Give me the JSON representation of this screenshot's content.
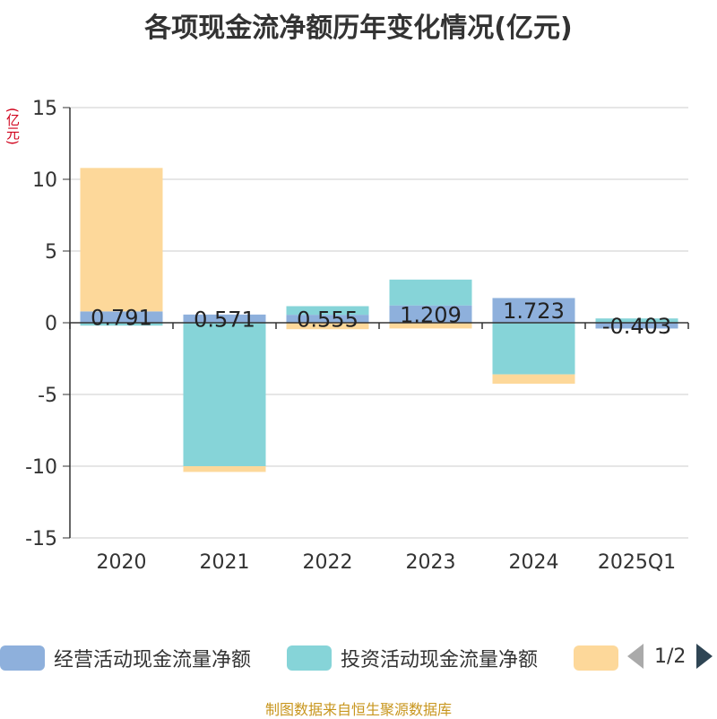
{
  "title": "各项现金流净额历年变化情况(亿元)",
  "unit_label": "(亿元)",
  "source": "制图数据来自恒生聚源数据库",
  "pager": {
    "text": "1/2"
  },
  "colors": {
    "operating": "#8eb0dc",
    "investing": "#86d4d8",
    "financing": "#fdd89a",
    "axis": "#333333",
    "grid": "#cccccc"
  },
  "chart_data": {
    "type": "bar",
    "stacked": true,
    "categories": [
      "2020",
      "2021",
      "2022",
      "2023",
      "2024",
      "2025Q1"
    ],
    "ylim": [
      -15,
      15
    ],
    "yticks": [
      15,
      10,
      5,
      0,
      -5,
      -10,
      -15
    ],
    "series": [
      {
        "name": "经营活动现金流量净额",
        "values": [
          0.791,
          0.571,
          0.555,
          1.209,
          1.723,
          -0.403
        ],
        "labels": [
          "0.791",
          "0.571",
          "0.555",
          "1.209",
          "1.723",
          "-0.403"
        ]
      },
      {
        "name": "投资活动现金流量净额",
        "values": [
          -0.2,
          -10.0,
          0.6,
          1.8,
          -3.6,
          0.3
        ]
      },
      {
        "name": "",
        "values": [
          10.0,
          -0.4,
          -0.45,
          -0.4,
          -0.65,
          0
        ]
      }
    ],
    "legend_position": "bottom"
  }
}
